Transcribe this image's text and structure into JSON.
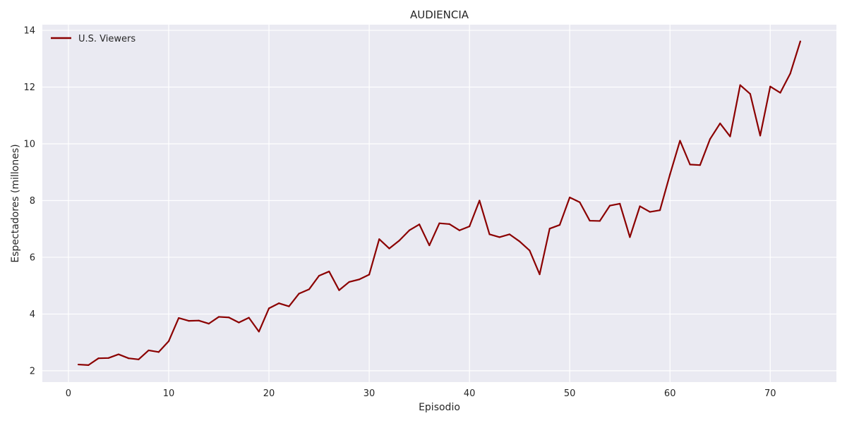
{
  "colors": {
    "plot_background": "#eaeaf2",
    "grid": "#ffffff",
    "series_line": "#8b0000"
  },
  "chart_data": {
    "type": "line",
    "title": "AUDIENCIA",
    "xlabel": "Episodio",
    "ylabel": "Espectadores (millones)",
    "xlim": [
      -2.6,
      76.6
    ],
    "ylim": [
      1.6,
      14.2
    ],
    "xticks": [
      0,
      10,
      20,
      30,
      40,
      50,
      60,
      70
    ],
    "yticks": [
      2,
      4,
      6,
      8,
      10,
      12,
      14
    ],
    "grid": true,
    "legend": {
      "position": "top-left",
      "entries": [
        "U.S. Viewers"
      ]
    },
    "series": [
      {
        "name": "U.S. Viewers",
        "color": "#8b0000",
        "x": [
          1,
          2,
          3,
          4,
          5,
          6,
          7,
          8,
          9,
          10,
          11,
          12,
          13,
          14,
          15,
          16,
          17,
          18,
          19,
          20,
          21,
          22,
          23,
          24,
          25,
          26,
          27,
          28,
          29,
          30,
          31,
          32,
          33,
          34,
          35,
          36,
          37,
          38,
          39,
          40,
          41,
          42,
          43,
          44,
          45,
          46,
          47,
          48,
          49,
          50,
          51,
          52,
          53,
          54,
          55,
          56,
          57,
          58,
          59,
          60,
          61,
          62,
          63,
          64,
          65,
          66,
          67,
          68,
          69,
          70,
          71,
          72,
          73
        ],
        "y": [
          2.22,
          2.2,
          2.44,
          2.45,
          2.58,
          2.44,
          2.4,
          2.72,
          2.66,
          3.04,
          3.86,
          3.76,
          3.77,
          3.66,
          3.9,
          3.88,
          3.7,
          3.87,
          3.38,
          4.2,
          4.38,
          4.27,
          4.72,
          4.87,
          5.35,
          5.5,
          4.84,
          5.13,
          5.22,
          5.39,
          6.64,
          6.31,
          6.59,
          6.95,
          7.16,
          6.42,
          7.2,
          7.17,
          6.95,
          7.09,
          8.0,
          6.81,
          6.71,
          6.81,
          6.56,
          6.24,
          5.4,
          7.01,
          7.14,
          8.11,
          7.94,
          7.29,
          7.28,
          7.82,
          7.89,
          6.71,
          7.8,
          7.6,
          7.66,
          8.92,
          10.11,
          9.27,
          9.25,
          10.17,
          10.72,
          10.26,
          12.07,
          11.76,
          10.29,
          12.02,
          11.8,
          12.48,
          13.61
        ]
      }
    ]
  }
}
